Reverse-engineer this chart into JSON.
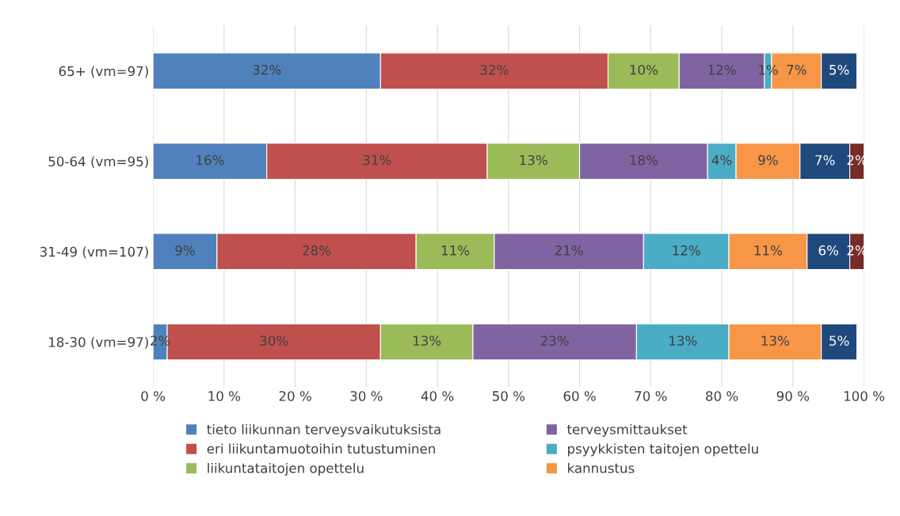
{
  "chart_data": {
    "type": "bar",
    "orientation": "horizontal",
    "stacked": true,
    "categories": [
      "65+ (vm=97)",
      "50-64 (vm=95)",
      "31-49 (vm=107)",
      "18-30 (vm=97)"
    ],
    "series": [
      {
        "name": "tieto liikunnan terveysvaikutuksista",
        "color": "#4f81bd",
        "values": [
          32,
          16,
          9,
          2
        ],
        "value_labels": [
          "32%",
          "16%",
          "9%",
          "2%"
        ]
      },
      {
        "name": "eri liikuntamuotoihin tutustuminen",
        "color": "#c0504d",
        "values": [
          32,
          31,
          28,
          30
        ],
        "value_labels": [
          "32%",
          "31%",
          "28%",
          "30%"
        ]
      },
      {
        "name": "liikuntataitojen opettelu",
        "color": "#9bbb59",
        "values": [
          10,
          13,
          11,
          13
        ],
        "value_labels": [
          "10%",
          "13%",
          "11%",
          "13%"
        ]
      },
      {
        "name": "terveysmittaukset",
        "color": "#8064a2",
        "values": [
          12,
          18,
          21,
          23
        ],
        "value_labels": [
          "12%",
          "18%",
          "21%",
          "23%"
        ]
      },
      {
        "name": "psyykkisten taitojen opettelu",
        "color": "#4bacc6",
        "values": [
          1,
          4,
          12,
          13
        ],
        "value_labels": [
          "1%",
          "4%",
          "12%",
          "13%"
        ]
      },
      {
        "name": "kannustus",
        "color": "#f79646",
        "values": [
          7,
          9,
          11,
          13
        ],
        "value_labels": [
          "7%",
          "9%",
          "11%",
          "13%"
        ]
      },
      {
        "color": "#1f497d",
        "values": [
          5,
          7,
          6,
          5
        ],
        "value_labels": [
          "5%",
          "7%",
          "6%",
          "5%"
        ]
      },
      {
        "color": "#772c2a",
        "values": [
          null,
          2,
          2,
          null
        ],
        "value_labels": [
          null,
          "2%",
          "2%",
          null
        ]
      }
    ],
    "xlim": [
      0,
      100
    ],
    "xticks": [
      {
        "value": 0,
        "label": "0 %"
      },
      {
        "value": 10,
        "label": "10 %"
      },
      {
        "value": 20,
        "label": "20 %"
      },
      {
        "value": 30,
        "label": "30 %"
      },
      {
        "value": 40,
        "label": "40 %"
      },
      {
        "value": 50,
        "label": "50 %"
      },
      {
        "value": 60,
        "label": "60 %"
      },
      {
        "value": 70,
        "label": "70 %"
      },
      {
        "value": 80,
        "label": "80 %"
      },
      {
        "value": 90,
        "label": "90 %"
      },
      {
        "value": 100,
        "label": "100 %"
      }
    ],
    "grid": "x",
    "legend": "bottom"
  }
}
